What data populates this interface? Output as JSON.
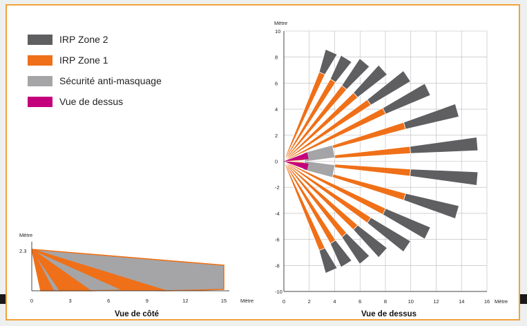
{
  "colors": {
    "zone2": "#5f5f62",
    "zone1": "#ef7018",
    "mask": "#a5a5a7",
    "top": "#c4007d",
    "frame": "#f1a23a"
  },
  "legend": [
    {
      "label": "IRP Zone 2",
      "color": "#5f5f62"
    },
    {
      "label": "IRP Zone 1",
      "color": "#ef7018"
    },
    {
      "label": "Sécurité anti-masquage",
      "color": "#a5a5a7"
    },
    {
      "label": "Vue de dessus",
      "color": "#c4007d"
    }
  ],
  "side_view": {
    "title": "Vue de côté",
    "y_unit": "Mètre",
    "x_unit": "Mètre",
    "height_label": "2.3",
    "x_ticks": [
      "0",
      "3",
      "6",
      "9",
      "12",
      "15"
    ]
  },
  "top_view": {
    "title": "Vue de dessus",
    "y_unit": "Mètre",
    "x_unit": "Mètre",
    "y_ticks": [
      "10",
      "8",
      "6",
      "4",
      "2",
      "0",
      "-2",
      "-4",
      "-6",
      "-8",
      "-10"
    ],
    "x_ticks": [
      "0",
      "2",
      "4",
      "6",
      "8",
      "10",
      "12",
      "14",
      "16"
    ]
  }
}
